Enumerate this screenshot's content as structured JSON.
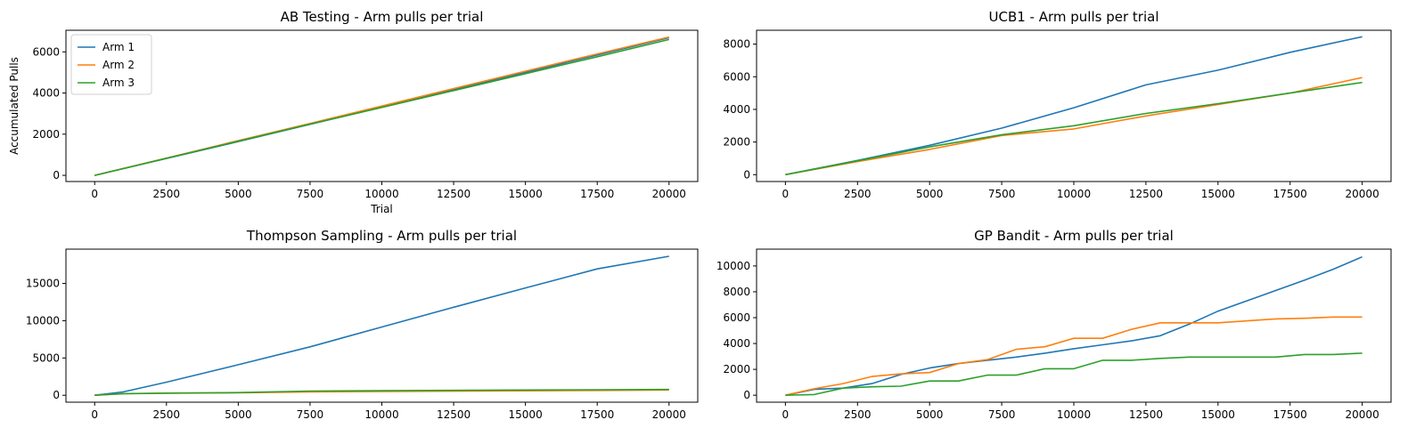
{
  "chart_data": [
    {
      "type": "line",
      "title": "AB Testing - Arm pulls per trial",
      "xlabel": "Trial",
      "ylabel": "Accumulated Pulls",
      "xlim": [
        -1000,
        21000
      ],
      "ylim": [
        -300,
        7050
      ],
      "xticks": [
        0,
        2500,
        5000,
        7500,
        10000,
        12500,
        15000,
        17500,
        20000
      ],
      "yticks": [
        0,
        2000,
        4000,
        6000
      ],
      "legend": "top-left",
      "x": [
        0,
        2500,
        5000,
        7500,
        10000,
        12500,
        15000,
        17500,
        20000
      ],
      "series": [
        {
          "name": "Arm 1",
          "color": "#1f77b4",
          "values": [
            0,
            820,
            1640,
            2480,
            3310,
            4160,
            5000,
            5850,
            6690
          ]
        },
        {
          "name": "Arm 2",
          "color": "#ff7f0e",
          "values": [
            0,
            840,
            1690,
            2520,
            3370,
            4220,
            5060,
            5900,
            6720
          ]
        },
        {
          "name": "Arm 3",
          "color": "#2ca02c",
          "values": [
            0,
            830,
            1660,
            2490,
            3300,
            4120,
            4940,
            5760,
            6600
          ]
        }
      ]
    },
    {
      "type": "line",
      "title": "UCB1 - Arm pulls per trial",
      "xlabel": "",
      "ylabel": "",
      "xlim": [
        -1000,
        21000
      ],
      "ylim": [
        -420,
        8850
      ],
      "xticks": [
        0,
        2500,
        5000,
        7500,
        10000,
        12500,
        15000,
        17500,
        20000
      ],
      "yticks": [
        0,
        2000,
        4000,
        6000,
        8000
      ],
      "x": [
        0,
        2500,
        5000,
        7500,
        10000,
        12500,
        15000,
        17500,
        20000
      ],
      "series": [
        {
          "color": "#1f77b4",
          "values": [
            0,
            870,
            1800,
            2850,
            4100,
            5500,
            6400,
            7500,
            8450
          ]
        },
        {
          "color": "#ff7f0e",
          "values": [
            0,
            800,
            1550,
            2400,
            2800,
            3600,
            4300,
            5000,
            5950
          ]
        },
        {
          "color": "#2ca02c",
          "values": [
            0,
            850,
            1700,
            2450,
            3000,
            3750,
            4350,
            5000,
            5650
          ]
        }
      ]
    },
    {
      "type": "line",
      "title": "Thompson Sampling - Arm pulls per trial",
      "xlabel": "",
      "ylabel": "",
      "xlim": [
        -1000,
        21000
      ],
      "ylim": [
        -930,
        19600
      ],
      "xticks": [
        0,
        2500,
        5000,
        7500,
        10000,
        12500,
        15000,
        17500,
        20000
      ],
      "yticks": [
        0,
        5000,
        10000,
        15000
      ],
      "x": [
        0,
        1000,
        2500,
        5000,
        7500,
        10000,
        12500,
        15000,
        17500,
        20000
      ],
      "series": [
        {
          "color": "#1f77b4",
          "values": [
            0,
            450,
            1750,
            4100,
            6500,
            9150,
            11800,
            14400,
            16950,
            18650
          ]
        },
        {
          "color": "#ff7f0e",
          "values": [
            0,
            200,
            270,
            320,
            450,
            500,
            550,
            600,
            650,
            700
          ]
        },
        {
          "color": "#2ca02c",
          "values": [
            0,
            210,
            290,
            360,
            560,
            610,
            660,
            700,
            740,
            780
          ]
        }
      ]
    },
    {
      "type": "line",
      "title": "GP Bandit - Arm pulls per trial",
      "xlabel": "",
      "ylabel": "",
      "xlim": [
        -1000,
        21000
      ],
      "ylim": [
        -540,
        11300
      ],
      "xticks": [
        0,
        2500,
        5000,
        7500,
        10000,
        12500,
        15000,
        17500,
        20000
      ],
      "yticks": [
        0,
        2000,
        4000,
        6000,
        8000,
        10000
      ],
      "x": [
        0,
        1000,
        2000,
        3000,
        4000,
        5000,
        6000,
        7000,
        8000,
        9000,
        10000,
        11000,
        12000,
        13000,
        14000,
        15000,
        16000,
        17000,
        18000,
        19000,
        20000
      ],
      "series": [
        {
          "color": "#1f77b4",
          "values": [
            0,
            450,
            550,
            900,
            1600,
            2100,
            2450,
            2700,
            2950,
            3250,
            3600,
            3900,
            4200,
            4600,
            5500,
            6500,
            7300,
            8100,
            8900,
            9750,
            10700
          ]
        },
        {
          "color": "#ff7f0e",
          "values": [
            0,
            500,
            900,
            1450,
            1650,
            1750,
            2450,
            2750,
            3550,
            3750,
            4400,
            4400,
            5100,
            5600,
            5600,
            5600,
            5750,
            5900,
            5950,
            6050,
            6050
          ]
        },
        {
          "color": "#2ca02c",
          "values": [
            0,
            50,
            550,
            650,
            700,
            1100,
            1100,
            1550,
            1550,
            2050,
            2050,
            2700,
            2700,
            2850,
            2950,
            2950,
            2950,
            2950,
            3150,
            3150,
            3250
          ]
        }
      ]
    }
  ]
}
